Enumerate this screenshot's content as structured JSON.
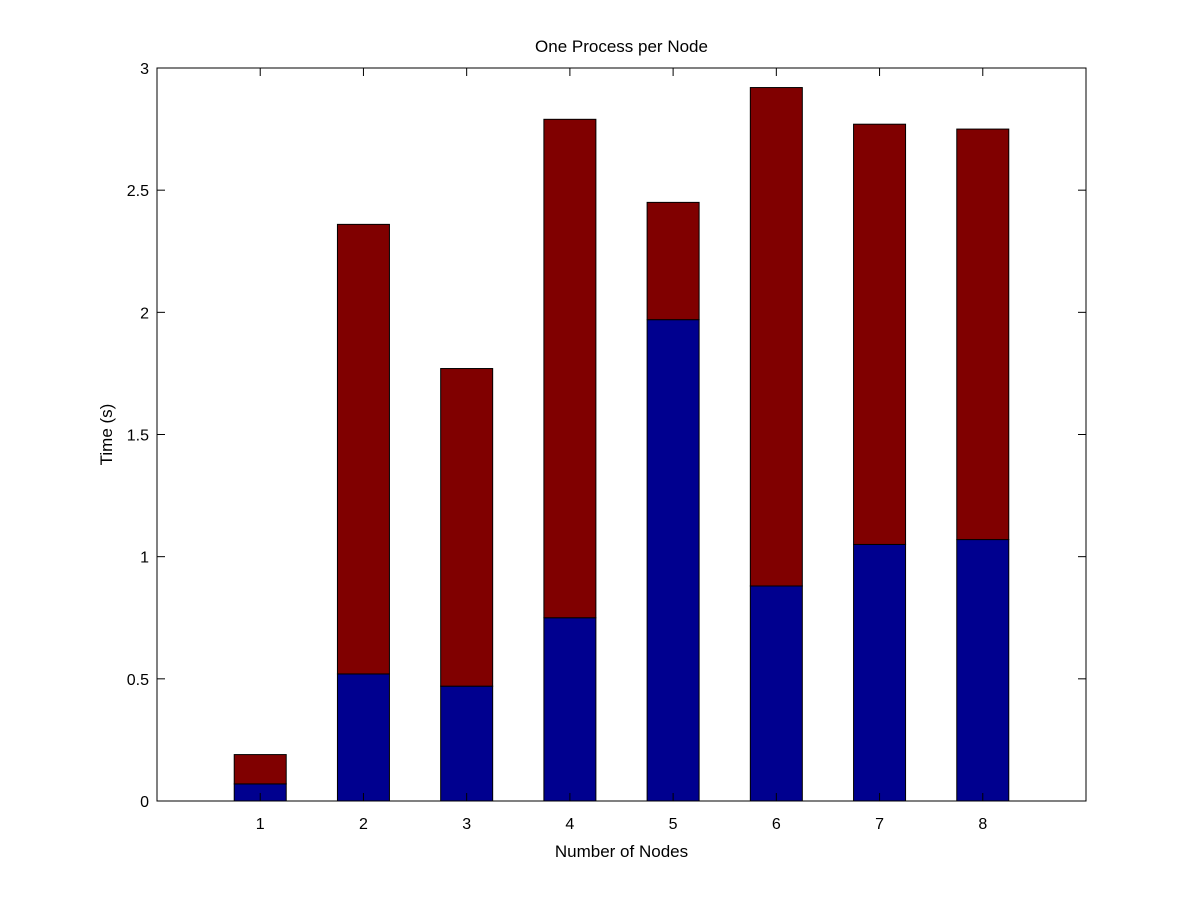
{
  "chart_data": {
    "type": "bar",
    "stacked": true,
    "title": "One Process per Node",
    "xlabel": "Number of Nodes",
    "ylabel": "Time (s)",
    "categories": [
      "1",
      "2",
      "3",
      "4",
      "5",
      "6",
      "7",
      "8"
    ],
    "ylim": [
      0,
      3
    ],
    "xlim": [
      0,
      9
    ],
    "yticks": [
      "0",
      "0.5",
      "1",
      "1.5",
      "2",
      "2.5",
      "3"
    ],
    "grid": false,
    "series": [
      {
        "values": [
          0.07,
          0.52,
          0.47,
          0.75,
          1.97,
          0.88,
          1.05,
          1.07
        ],
        "color": "#00008f"
      },
      {
        "values": [
          0.12,
          1.84,
          1.3,
          2.04,
          0.48,
          2.04,
          1.72,
          1.68
        ],
        "color": "#800000"
      }
    ]
  }
}
